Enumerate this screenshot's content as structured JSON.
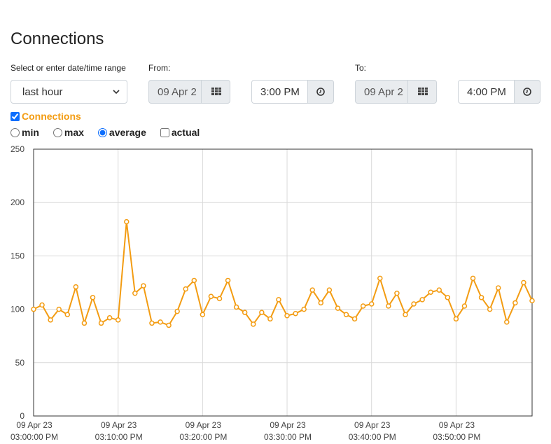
{
  "page": {
    "title": "Connections"
  },
  "range": {
    "label": "Select or enter date/time range",
    "selected": "last hour"
  },
  "from": {
    "label": "From:",
    "date": "09 Apr 2",
    "time": "3:00 PM"
  },
  "to": {
    "label": "To:",
    "date": "09 Apr 2",
    "time": "4:00 PM"
  },
  "series_toggle": {
    "label": "Connections",
    "checked": true
  },
  "modes": [
    {
      "label": "min",
      "type": "radio",
      "checked": false
    },
    {
      "label": "max",
      "type": "radio",
      "checked": false
    },
    {
      "label": "average",
      "type": "radio",
      "checked": true
    },
    {
      "label": "actual",
      "type": "checkbox",
      "checked": false
    }
  ],
  "icons": {
    "calendar": "grid-calendar-icon",
    "time": "clock-icon",
    "dropdown": "chevron-down-icon"
  },
  "colors": {
    "series": "#f39c12",
    "grid": "#d9d9d9"
  },
  "chart_data": {
    "type": "line",
    "title": "",
    "xlabel": "",
    "ylabel": "",
    "ylim": [
      0,
      250
    ],
    "yticks": [
      "0",
      "50",
      "100",
      "150",
      "200",
      "250"
    ],
    "xticks": [
      {
        "date": "09 Apr 23",
        "time": "03:00:00 PM"
      },
      {
        "date": "09 Apr 23",
        "time": "03:10:00 PM"
      },
      {
        "date": "09 Apr 23",
        "time": "03:20:00 PM"
      },
      {
        "date": "09 Apr 23",
        "time": "03:30:00 PM"
      },
      {
        "date": "09 Apr 23",
        "time": "03:40:00 PM"
      },
      {
        "date": "09 Apr 23",
        "time": "03:50:00 PM"
      }
    ],
    "x_unit": "minutes after 03:00:00 PM",
    "xlim": [
      0,
      59
    ],
    "grid": true,
    "series": [
      {
        "name": "Connections",
        "x": [
          0,
          1,
          2,
          3,
          4,
          5,
          6,
          7,
          8,
          9,
          10,
          11,
          12,
          13,
          14,
          15,
          16,
          17,
          18,
          19,
          20,
          21,
          22,
          23,
          24,
          25,
          26,
          27,
          28,
          29,
          30,
          31,
          32,
          33,
          34,
          35,
          36,
          37,
          38,
          39,
          40,
          41,
          42,
          43,
          44,
          45,
          46,
          47,
          48,
          49,
          50,
          51,
          52,
          53,
          54,
          55,
          56,
          57,
          58,
          59
        ],
        "values": [
          100,
          104,
          90,
          100,
          95,
          121,
          87,
          111,
          87,
          92,
          90,
          182,
          115,
          122,
          87,
          88,
          85,
          98,
          119,
          127,
          95,
          112,
          110,
          127,
          102,
          97,
          86,
          97,
          91,
          109,
          94,
          96,
          100,
          118,
          106,
          118,
          101,
          95,
          91,
          103,
          105,
          129,
          103,
          115,
          95,
          105,
          109,
          116,
          118,
          111,
          91,
          103,
          129,
          111,
          100,
          120,
          88,
          106,
          125,
          108
        ]
      }
    ]
  }
}
